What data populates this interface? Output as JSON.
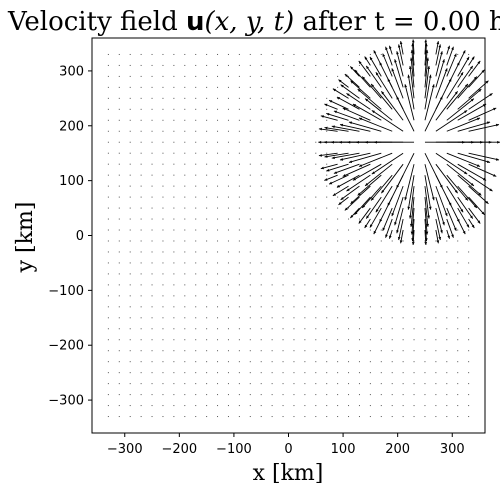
{
  "chart_data": {
    "type": "quiver",
    "title": {
      "prefix": "Velocity field ",
      "bold_symbol": "u",
      "args": "(x, y, t)",
      "suffix": " after t = 0.00 h"
    },
    "xlabel": "x [km]",
    "ylabel": "y [km]",
    "xlim": [
      -360,
      360
    ],
    "ylim": [
      -360,
      360
    ],
    "xticks": [
      -300,
      -200,
      -100,
      0,
      100,
      200,
      300
    ],
    "yticks": [
      -300,
      -200,
      -100,
      0,
      100,
      200,
      300
    ],
    "xtick_labels": [
      "−300",
      "−200",
      "−100",
      "0",
      "100",
      "200",
      "300"
    ],
    "ytick_labels": [
      "−300",
      "−200",
      "−100",
      "0",
      "100",
      "200",
      "300"
    ],
    "grid": false,
    "field": {
      "x_range": [
        -330,
        330
      ],
      "y_range": [
        -330,
        330
      ],
      "spacing": 20,
      "source_center": [
        240,
        170
      ],
      "radius_km": 170,
      "peak_speed_km": 75,
      "pattern": "radial outflow from source; negligible elsewhere"
    },
    "arrow_color": "#000000"
  }
}
